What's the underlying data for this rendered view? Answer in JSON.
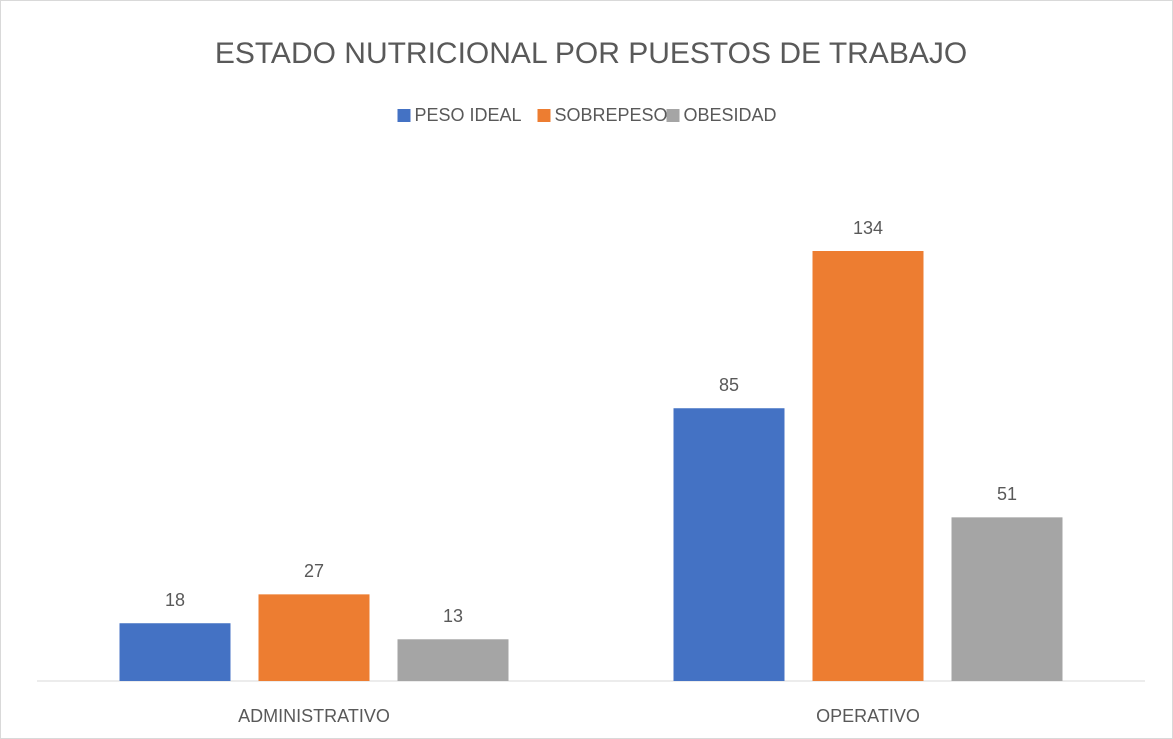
{
  "chart_data": {
    "type": "bar",
    "title": "ESTADO NUTRICIONAL POR PUESTOS DE TRABAJO",
    "categories": [
      "ADMINISTRATIVO",
      "OPERATIVO"
    ],
    "series": [
      {
        "name": "PESO IDEAL",
        "color": "#4472c4",
        "values": [
          18,
          85
        ]
      },
      {
        "name": "SOBREPESO",
        "color": "#ed7d31",
        "values": [
          27,
          134
        ]
      },
      {
        "name": "OBESIDAD",
        "color": "#a5a5a5",
        "values": [
          13,
          51
        ]
      }
    ],
    "legend": "top"
  }
}
